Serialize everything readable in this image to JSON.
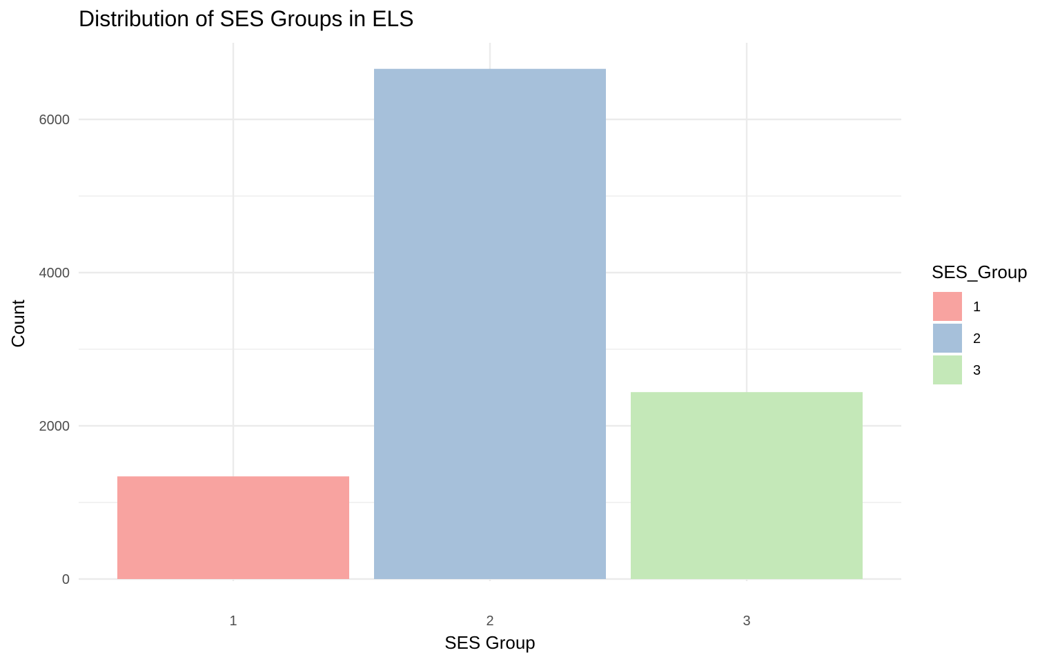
{
  "chart_data": {
    "type": "bar",
    "title": "Distribution of SES Groups in ELS",
    "xlabel": "SES Group",
    "ylabel": "Count",
    "categories": [
      "1",
      "2",
      "3"
    ],
    "values": [
      1340,
      6660,
      2440
    ],
    "colors": [
      "#F8A3A0",
      "#A6C0DA",
      "#C4E8B8"
    ],
    "ylim": [
      0,
      7000
    ],
    "y_ticks": [
      0,
      2000,
      4000,
      6000
    ],
    "y_minor_ticks": [
      1000,
      3000,
      5000
    ],
    "grid": true,
    "legend": {
      "title": "SES_Group",
      "placement": "right",
      "entries": [
        "1",
        "2",
        "3"
      ]
    }
  }
}
